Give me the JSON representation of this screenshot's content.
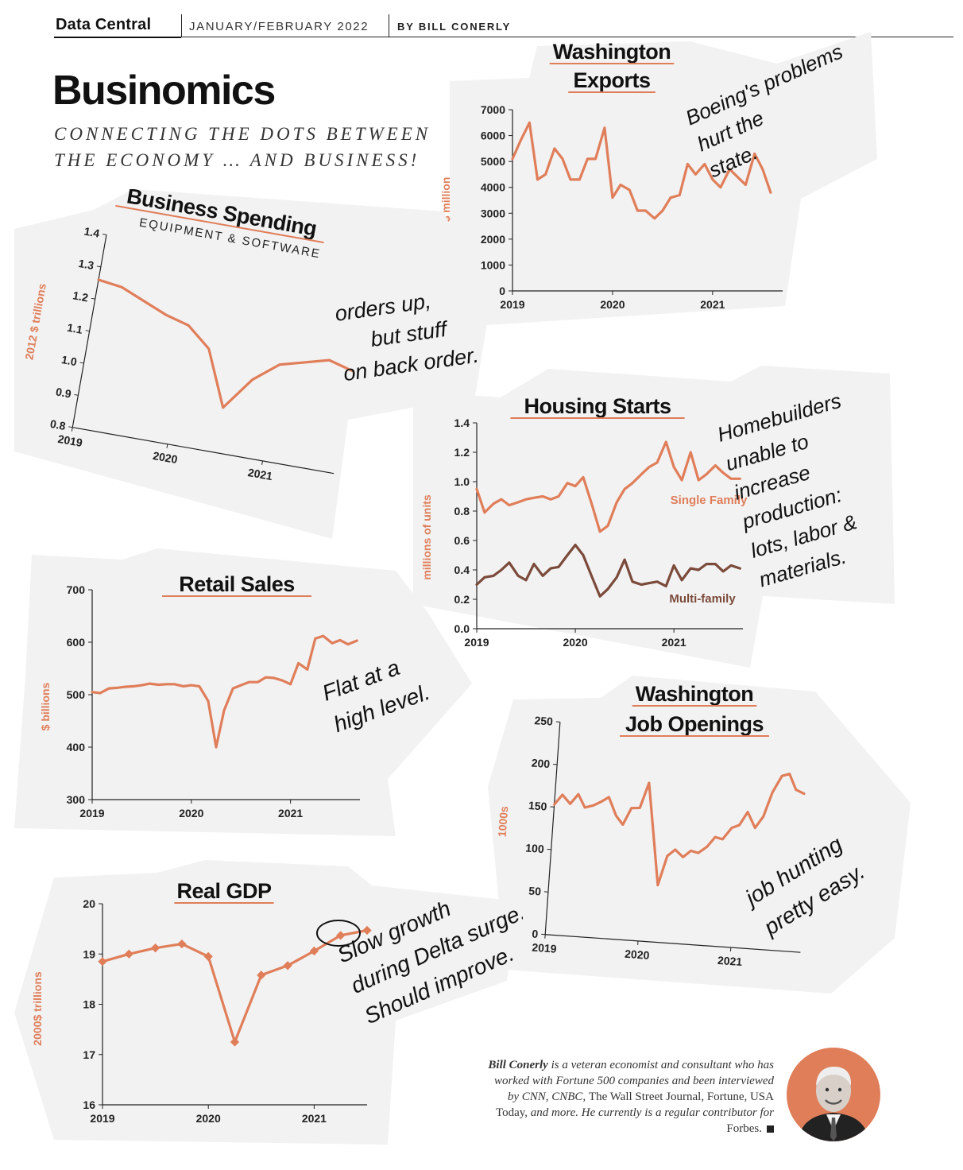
{
  "header": {
    "section": "Data Central",
    "issue": "JANUARY/FEBRUARY 2022",
    "byline": "BY BILL CONERLY",
    "title": "Businomics",
    "subtitle": "CONNECTING THE DOTS BETWEEN THE ECONOMY … AND BUSINESS!"
  },
  "colors": {
    "accent": "#e07e5a",
    "dark_series": "#7b4a3a",
    "card": "#f2f2f2"
  },
  "bio": {
    "name": "Bill Conerly",
    "text1": " is a veteran economist and consultant who has worked with Fortune 500 companies and been interviewed by CNN, CNBC, ",
    "wsj": "The Wall Street Journal, Fortune, USA Today,",
    "text2": " and more. He currently is a regular contributor for ",
    "forbes": "Forbes.",
    "photo_icon": "author-photo-icon"
  },
  "chart_data": [
    {
      "id": "washington-exports",
      "type": "line",
      "title_lines": [
        "Washington",
        "Exports"
      ],
      "subtitle": "",
      "ylabel": "$ million",
      "xlabel": "",
      "ylim": [
        0,
        7000
      ],
      "yticks": [
        0,
        1000,
        2000,
        3000,
        4000,
        5000,
        6000,
        7000
      ],
      "xlim": [
        2019,
        2021.7
      ],
      "xticks": [
        2019,
        2020,
        2021
      ],
      "annotation": [
        "Boeing's problems",
        "hurt the",
        "state."
      ],
      "series": [
        {
          "x": [
            2019.0,
            2019.08,
            2019.17,
            2019.25,
            2019.33,
            2019.42,
            2019.5,
            2019.58,
            2019.67,
            2019.75,
            2019.83,
            2019.92,
            2020.0,
            2020.08,
            2020.17,
            2020.25,
            2020.33,
            2020.42,
            2020.5,
            2020.58,
            2020.67,
            2020.75,
            2020.83,
            2020.92,
            2021.0,
            2021.08,
            2021.17,
            2021.25,
            2021.33,
            2021.42,
            2021.5,
            2021.58
          ],
          "y": [
            5100,
            5800,
            6500,
            4300,
            4500,
            5500,
            5100,
            4300,
            4300,
            5100,
            5100,
            6300,
            3600,
            4100,
            3900,
            3100,
            3100,
            2800,
            3100,
            3600,
            3700,
            4900,
            4500,
            4900,
            4300,
            4000,
            4700,
            4400,
            4100,
            5300,
            4700,
            3800
          ]
        }
      ]
    },
    {
      "id": "business-spending",
      "type": "line",
      "title_lines": [
        "Business Spending"
      ],
      "subtitle": "EQUIPMENT & SOFTWARE",
      "ylabel": "2012 $ trillions",
      "xlabel": "",
      "ylim": [
        0.8,
        1.4
      ],
      "yticks": [
        0.8,
        0.9,
        1.0,
        1.1,
        1.2,
        1.3,
        1.4
      ],
      "xlim": [
        2019,
        2021.75
      ],
      "xticks": [
        2019,
        2020,
        2021
      ],
      "annotation": [
        "orders up,",
        "but stuff",
        "on back order."
      ],
      "series": [
        {
          "x": [
            2019.0,
            2019.25,
            2019.5,
            2019.75,
            2020.0,
            2020.25,
            2020.5,
            2020.75,
            2021.0,
            2021.25,
            2021.5,
            2021.75
          ],
          "y": [
            1.26,
            1.25,
            1.22,
            1.19,
            1.17,
            1.11,
            0.94,
            1.04,
            1.1,
            1.12,
            1.14,
            1.12
          ]
        }
      ]
    },
    {
      "id": "housing-starts",
      "type": "line",
      "title_lines": [
        "Housing Starts"
      ],
      "subtitle": "",
      "ylabel": "millions of units",
      "xlabel": "",
      "ylim": [
        0.0,
        1.4
      ],
      "yticks": [
        0.0,
        0.2,
        0.4,
        0.6,
        0.8,
        1.0,
        1.2,
        1.4
      ],
      "xlim": [
        2019,
        2021.7
      ],
      "xticks": [
        2019,
        2020,
        2021
      ],
      "annotation": [
        "Homebuilders",
        "unable to",
        "increase",
        "production:",
        "lots, labor &",
        "materials."
      ],
      "series": [
        {
          "name": "Single Family",
          "x": [
            2019.0,
            2019.08,
            2019.17,
            2019.25,
            2019.33,
            2019.42,
            2019.5,
            2019.58,
            2019.67,
            2019.75,
            2019.83,
            2019.92,
            2020.0,
            2020.08,
            2020.17,
            2020.25,
            2020.33,
            2020.42,
            2020.5,
            2020.58,
            2020.67,
            2020.75,
            2020.83,
            2020.92,
            2021.0,
            2021.08,
            2021.17,
            2021.25,
            2021.33,
            2021.42,
            2021.5,
            2021.58,
            2021.67
          ],
          "y": [
            0.95,
            0.79,
            0.85,
            0.88,
            0.84,
            0.86,
            0.88,
            0.89,
            0.9,
            0.88,
            0.9,
            0.99,
            0.97,
            1.03,
            0.84,
            0.66,
            0.7,
            0.86,
            0.95,
            0.99,
            1.05,
            1.1,
            1.13,
            1.27,
            1.1,
            1.01,
            1.2,
            1.01,
            1.05,
            1.11,
            1.06,
            1.02,
            1.02
          ]
        },
        {
          "name": "Multi-family",
          "x": [
            2019.0,
            2019.08,
            2019.17,
            2019.25,
            2019.33,
            2019.42,
            2019.5,
            2019.58,
            2019.67,
            2019.75,
            2019.83,
            2019.92,
            2020.0,
            2020.08,
            2020.17,
            2020.25,
            2020.33,
            2020.42,
            2020.5,
            2020.58,
            2020.67,
            2020.75,
            2020.83,
            2020.92,
            2021.0,
            2021.08,
            2021.17,
            2021.25,
            2021.33,
            2021.42,
            2021.5,
            2021.58,
            2021.67
          ],
          "y": [
            0.3,
            0.35,
            0.36,
            0.4,
            0.45,
            0.36,
            0.33,
            0.44,
            0.36,
            0.41,
            0.42,
            0.5,
            0.57,
            0.5,
            0.35,
            0.22,
            0.27,
            0.35,
            0.47,
            0.32,
            0.3,
            0.31,
            0.32,
            0.29,
            0.43,
            0.33,
            0.41,
            0.4,
            0.44,
            0.44,
            0.39,
            0.43,
            0.41
          ]
        }
      ]
    },
    {
      "id": "retail-sales",
      "type": "line",
      "title_lines": [
        "Retail Sales"
      ],
      "subtitle": "",
      "ylabel": "$ billions",
      "xlabel": "",
      "ylim": [
        300,
        700
      ],
      "yticks": [
        300,
        400,
        500,
        600,
        700
      ],
      "xlim": [
        2019,
        2021.7
      ],
      "xticks": [
        2019,
        2020,
        2021
      ],
      "annotation": [
        "Flat at a",
        "high level."
      ],
      "series": [
        {
          "x": [
            2019.0,
            2019.08,
            2019.17,
            2019.25,
            2019.33,
            2019.42,
            2019.5,
            2019.58,
            2019.67,
            2019.75,
            2019.83,
            2019.92,
            2020.0,
            2020.08,
            2020.17,
            2020.25,
            2020.33,
            2020.42,
            2020.5,
            2020.58,
            2020.67,
            2020.75,
            2020.83,
            2020.92,
            2021.0,
            2021.08,
            2021.17,
            2021.25,
            2021.33,
            2021.42,
            2021.5,
            2021.58,
            2021.67
          ],
          "y": [
            505,
            503,
            512,
            513,
            515,
            516,
            518,
            521,
            519,
            520,
            520,
            516,
            518,
            516,
            488,
            400,
            470,
            512,
            518,
            524,
            524,
            533,
            532,
            527,
            520,
            560,
            548,
            607,
            612,
            598,
            604,
            596,
            603
          ]
        }
      ]
    },
    {
      "id": "washington-job-openings",
      "type": "line",
      "title_lines": [
        "Washington",
        "Job Openings"
      ],
      "subtitle": "",
      "ylabel": "1000s",
      "xlabel": "",
      "ylim": [
        0,
        250
      ],
      "yticks": [
        0,
        50,
        100,
        150,
        200,
        250
      ],
      "xlim": [
        2019,
        2021.75
      ],
      "xticks": [
        2019,
        2020,
        2021
      ],
      "annotation": [
        "job hunting",
        "pretty easy."
      ],
      "series": [
        {
          "x": [
            2019.0,
            2019.08,
            2019.17,
            2019.25,
            2019.33,
            2019.42,
            2019.5,
            2019.58,
            2019.67,
            2019.75,
            2019.83,
            2019.92,
            2020.0,
            2020.08,
            2020.17,
            2020.25,
            2020.33,
            2020.42,
            2020.5,
            2020.58,
            2020.67,
            2020.75,
            2020.83,
            2020.92,
            2021.0,
            2021.08,
            2021.17,
            2021.25,
            2021.33,
            2021.42,
            2021.5,
            2021.58,
            2021.67
          ],
          "y": [
            153,
            165,
            155,
            167,
            152,
            155,
            160,
            166,
            145,
            135,
            155,
            156,
            186,
            130,
            67,
            102,
            110,
            102,
            110,
            108,
            116,
            128,
            126,
            140,
            144,
            160,
            142,
            156,
            185,
            205,
            208,
            190,
            186
          ]
        }
      ]
    },
    {
      "id": "real-gdp",
      "type": "line",
      "title_lines": [
        "Real GDP"
      ],
      "subtitle": "",
      "ylabel": "2000$ trillions",
      "xlabel": "",
      "ylim": [
        16,
        20
      ],
      "yticks": [
        16,
        17,
        18,
        19,
        20
      ],
      "xlim": [
        2019,
        2021.5
      ],
      "xticks": [
        2019,
        2020,
        2021
      ],
      "annotation": [
        "Slow growth",
        "during Delta surge.",
        "Should improve."
      ],
      "markers": true,
      "series": [
        {
          "x": [
            2019.0,
            2019.25,
            2019.5,
            2019.75,
            2020.0,
            2020.25,
            2020.5,
            2020.75,
            2021.0,
            2021.25,
            2021.5
          ],
          "y": [
            18.85,
            19.0,
            19.12,
            19.2,
            18.95,
            17.25,
            18.58,
            18.77,
            19.06,
            19.37,
            19.47
          ]
        }
      ]
    }
  ]
}
